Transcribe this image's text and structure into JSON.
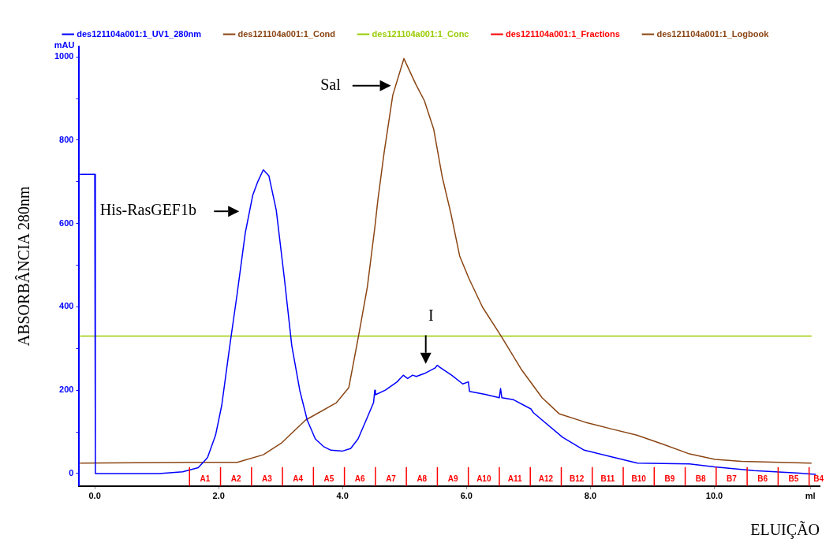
{
  "chart_data": {
    "type": "line",
    "xlabel": "ELUIÇÃO",
    "ylabel": "ABSORBÂNCIA 280nm",
    "xlim": [
      -0.25,
      11.7
    ],
    "xticks": [
      {
        "value": 0,
        "label": "0.0"
      },
      {
        "value": 2,
        "label": "2.0"
      },
      {
        "value": 4,
        "label": "4.0"
      },
      {
        "value": 6,
        "label": "6.0"
      },
      {
        "value": 8,
        "label": "8.0"
      },
      {
        "value": 10,
        "label": "10.0"
      },
      {
        "value": 11.55,
        "label": "ml"
      }
    ],
    "ylim": [
      -30,
      1025
    ],
    "yticks": [
      0,
      {
        "value": 100,
        "label": null
      },
      200,
      {
        "value": 300,
        "label": null
      },
      400,
      {
        "value": 500,
        "label": null
      },
      600,
      {
        "value": 700,
        "label": null
      },
      800,
      {
        "value": 900,
        "label": null
      },
      1000
    ],
    "legend": "top",
    "marker": "none",
    "grid": false,
    "series": [
      {
        "name": "des121104a001:1_UV1_280nm",
        "color": "#0000ff",
        "x": [
          -0.24,
          0.0,
          0.01,
          1.04,
          1.42,
          1.67,
          1.82,
          1.95,
          2.05,
          2.18,
          2.3,
          2.43,
          2.55,
          2.63,
          2.72,
          2.81,
          2.93,
          3.06,
          3.18,
          3.31,
          3.43,
          3.56,
          3.69,
          3.81,
          4.0,
          4.13,
          4.25,
          4.38,
          4.5,
          4.52,
          4.53,
          4.69,
          4.88,
          4.98,
          5.05,
          5.13,
          5.19,
          5.32,
          5.49,
          5.53,
          5.57,
          5.76,
          5.94,
          6.03,
          6.05,
          6.3,
          6.53,
          6.55,
          6.57,
          6.76,
          7.04,
          7.08,
          7.55,
          7.9,
          8.34,
          8.76,
          9.6,
          10.0,
          10.64,
          11.27,
          11.64
        ],
        "values": [
          718,
          718,
          0,
          0,
          4,
          14,
          38,
          92,
          164,
          307,
          433,
          578,
          668,
          700,
          729,
          715,
          632,
          469,
          307,
          199,
          128,
          83,
          65,
          56,
          54,
          60,
          83,
          128,
          170,
          200,
          189,
          200,
          220,
          236,
          228,
          236,
          233,
          240,
          253,
          260,
          255,
          236,
          215,
          220,
          197,
          190,
          182,
          204,
          182,
          177,
          155,
          146,
          87,
          56,
          40,
          25,
          23,
          16,
          7,
          2,
          -2
        ]
      },
      {
        "name": "des121104a001:1_Cond",
        "color": "#8b4513",
        "x": [
          -0.24,
          1.55,
          2.3,
          2.72,
          3.02,
          3.4,
          3.9,
          4.1,
          4.26,
          4.4,
          4.52,
          4.57,
          4.67,
          4.81,
          4.99,
          5.18,
          5.32,
          5.47,
          5.61,
          5.75,
          5.89,
          6.04,
          6.26,
          6.55,
          6.88,
          7.22,
          7.5,
          7.92,
          8.34,
          8.75,
          9.18,
          9.6,
          10.01,
          10.44,
          11.57
        ],
        "values": [
          25,
          27,
          27,
          45,
          74,
          128,
          170,
          206,
          332,
          448,
          590,
          657,
          770,
          908,
          996,
          935,
          895,
          827,
          711,
          623,
          522,
          468,
          399,
          332,
          251,
          182,
          143,
          123,
          107,
          92,
          70,
          47,
          34,
          29,
          25
        ]
      },
      {
        "name": "des121104a001:1_Conc",
        "color": "#99cc00",
        "x": [
          -0.24,
          11.57
        ],
        "values": [
          330,
          330
        ]
      },
      {
        "name": "des121104a001:1_Fractions",
        "color": "#ff0000"
      },
      {
        "name": "des121104a001:1_Logbook",
        "color": "#8b4513"
      }
    ],
    "ref_lines": [
      {
        "axis": "x",
        "value": 1.53,
        "label": "A1",
        "color": "#ff0000"
      },
      {
        "axis": "x",
        "value": 2.03,
        "label": "A2",
        "color": "#ff0000"
      },
      {
        "axis": "x",
        "value": 2.53,
        "label": "A3",
        "color": "#ff0000"
      },
      {
        "axis": "x",
        "value": 3.03,
        "label": "A4",
        "color": "#ff0000"
      },
      {
        "axis": "x",
        "value": 3.53,
        "label": "A5",
        "color": "#ff0000"
      },
      {
        "axis": "x",
        "value": 4.03,
        "label": "A6",
        "color": "#ff0000"
      },
      {
        "axis": "x",
        "value": 4.53,
        "label": "A7",
        "color": "#ff0000"
      },
      {
        "axis": "x",
        "value": 5.03,
        "label": "A8",
        "color": "#ff0000"
      },
      {
        "axis": "x",
        "value": 5.53,
        "label": "A9",
        "color": "#ff0000"
      },
      {
        "axis": "x",
        "value": 6.03,
        "label": "A10",
        "color": "#ff0000"
      },
      {
        "axis": "x",
        "value": 6.53,
        "label": "A11",
        "color": "#ff0000"
      },
      {
        "axis": "x",
        "value": 7.03,
        "label": "A12",
        "color": "#ff0000"
      },
      {
        "axis": "x",
        "value": 7.53,
        "label": "B12",
        "color": "#ff0000"
      },
      {
        "axis": "x",
        "value": 8.03,
        "label": "B11",
        "color": "#ff0000"
      },
      {
        "axis": "x",
        "value": 8.53,
        "label": "B10",
        "color": "#ff0000"
      },
      {
        "axis": "x",
        "value": 9.03,
        "label": "B9",
        "color": "#ff0000"
      },
      {
        "axis": "x",
        "value": 9.53,
        "label": "B8",
        "color": "#ff0000"
      },
      {
        "axis": "x",
        "value": 10.03,
        "label": "B7",
        "color": "#ff0000"
      },
      {
        "axis": "x",
        "value": 10.53,
        "label": "B6",
        "color": "#ff0000"
      },
      {
        "axis": "x",
        "value": 11.03,
        "label": "B5",
        "color": "#ff0000"
      },
      {
        "axis": "x",
        "value": 11.53,
        "label": "B4",
        "color": "#ff0000"
      }
    ],
    "annotations": [
      "mAU",
      "His-RasGEF1b",
      "Sal",
      "I"
    ]
  }
}
